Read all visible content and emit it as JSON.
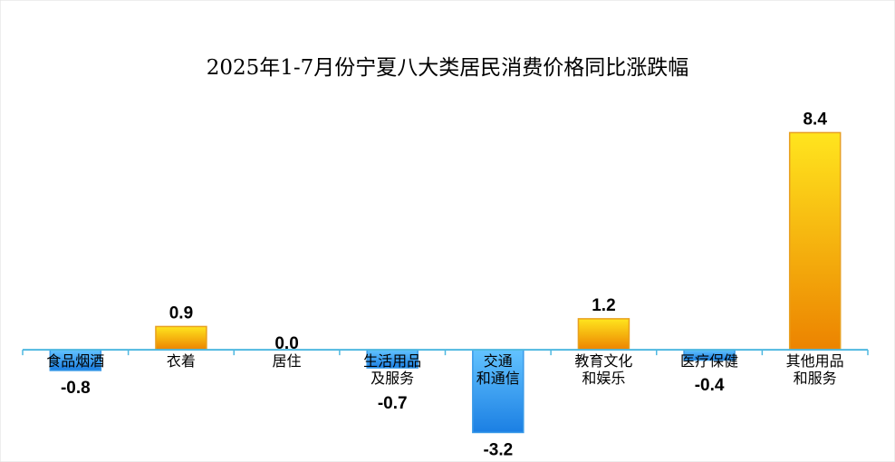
{
  "chart_data": {
    "type": "bar",
    "title": "2025年1-7月份宁夏八大类居民消费价格同比涨跌幅",
    "categories": [
      "食品烟酒",
      "衣着",
      "居住",
      "生活用品\n及服务",
      "交通\n和通信",
      "教育文化\n和娱乐",
      "医疗保健",
      "其他用品\n和服务"
    ],
    "values": [
      -0.8,
      0.9,
      0,
      -0.7,
      -3.2,
      1.2,
      -0.4,
      8.4
    ],
    "value_labels": [
      "-0.8",
      "0.9",
      "0.0",
      "-0.7",
      "-3.2",
      "1.2",
      "-0.4",
      "8.4"
    ],
    "ylim": [
      -3.5,
      8.8
    ],
    "positive_gradient": [
      "#ffe51e",
      "#ec8300"
    ],
    "negative_gradient": [
      "#63c3ff",
      "#1b7fe3"
    ],
    "positive_stroke": "#e8a020",
    "negative_stroke": "#3a9ae8",
    "axis_color": "#4fb8e0"
  }
}
